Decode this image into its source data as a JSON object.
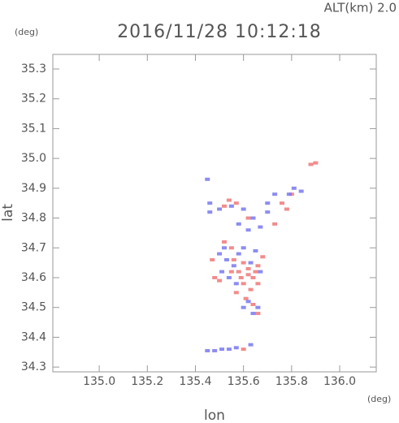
{
  "chart_data": {
    "type": "scatter",
    "title": "2016/11/28 10:12:18",
    "subtitle": "ALT(km) 2.0",
    "y_unit": "(deg)",
    "x_unit": "(deg)",
    "x_label": "lon",
    "y_label": "lat",
    "xlim": [
      134.807,
      136.152
    ],
    "ylim": [
      34.284,
      35.349
    ],
    "xticks": [
      {
        "value": 135,
        "label": "135.0"
      },
      135.2,
      135.4,
      135.6,
      135.8,
      {
        "value": 136,
        "label": "136.0"
      }
    ],
    "yticks": [
      34.3,
      34.4,
      34.5,
      34.6,
      34.7,
      34.8,
      34.9,
      {
        "value": 35,
        "label": "35.0"
      },
      35.1,
      35.2,
      35.3
    ],
    "series": [
      {
        "color": "#f07878",
        "x": [
          135.52,
          135.57,
          135.62,
          135.76,
          135.78,
          135.88,
          135.9,
          135.52,
          135.55,
          135.6,
          135.62,
          135.58,
          135.64,
          135.66,
          135.68,
          135.6,
          135.63,
          135.57,
          135.61,
          135.64,
          135.47,
          135.5,
          135.55,
          135.66,
          135.59,
          135.62,
          135.65,
          135.48,
          135.8,
          135.73,
          135.54,
          135.66,
          135.6,
          135.56
        ],
        "y": [
          34.84,
          34.85,
          34.8,
          34.85,
          34.83,
          34.98,
          34.985,
          34.72,
          34.7,
          34.65,
          34.63,
          34.62,
          34.6,
          34.64,
          34.67,
          34.58,
          34.56,
          34.55,
          34.53,
          34.51,
          34.66,
          34.59,
          34.62,
          34.58,
          34.6,
          34.61,
          34.62,
          34.6,
          34.88,
          34.78,
          34.86,
          34.48,
          34.36,
          34.66
        ]
      },
      {
        "color": "#7878f0",
        "x": [
          135.45,
          135.46,
          135.5,
          135.55,
          135.6,
          135.64,
          135.67,
          135.7,
          135.73,
          135.79,
          135.81,
          135.84,
          135.58,
          135.62,
          135.52,
          135.5,
          135.53,
          135.56,
          135.58,
          135.65,
          135.6,
          135.54,
          135.57,
          135.63,
          135.67,
          135.62,
          135.6,
          135.64,
          135.66,
          135.45,
          135.48,
          135.51,
          135.54,
          135.57,
          135.63,
          135.51,
          135.46,
          135.7
        ],
        "y": [
          34.93,
          34.85,
          34.83,
          34.84,
          34.83,
          34.8,
          34.77,
          34.82,
          34.88,
          34.88,
          34.9,
          34.89,
          34.78,
          34.76,
          34.7,
          34.68,
          34.66,
          34.64,
          34.68,
          34.69,
          34.7,
          34.6,
          34.58,
          34.65,
          34.62,
          34.52,
          34.5,
          34.48,
          34.5,
          34.355,
          34.355,
          34.36,
          34.36,
          34.365,
          34.375,
          34.62,
          34.82,
          34.85
        ]
      }
    ]
  }
}
